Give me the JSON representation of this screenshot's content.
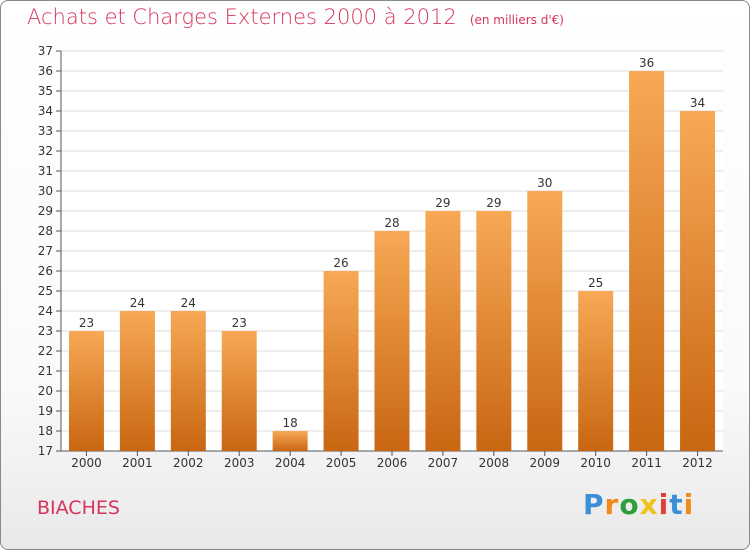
{
  "title": "Achats et Charges Externes 2000 à 2012",
  "subtitle": "(en milliers d'€)",
  "place": "BIACHES",
  "logo": "Proxiti",
  "logo_colors": [
    "#3a8fd6",
    "#f08a1a",
    "#2e9e3a",
    "#f0c21a",
    "#e0403a",
    "#3a8fd6",
    "#f08a1a"
  ],
  "colors": {
    "bar_light": "#f7a955",
    "bar_dark": "#c96612",
    "title": "#d6345c",
    "grid": "#dcdcdc",
    "axis": "#555555"
  },
  "chart_data": {
    "type": "bar",
    "title": "Achats et Charges Externes 2000 à 2012",
    "subtitle": "(en milliers d'€)",
    "categories": [
      "2000",
      "2001",
      "2002",
      "2003",
      "2004",
      "2005",
      "2006",
      "2007",
      "2008",
      "2009",
      "2010",
      "2011",
      "2012"
    ],
    "values": [
      23,
      24,
      24,
      23,
      18,
      26,
      28,
      29,
      29,
      30,
      25,
      36,
      34
    ],
    "ylim": [
      17,
      37
    ],
    "yticks": [
      17,
      18,
      19,
      20,
      21,
      22,
      23,
      24,
      25,
      26,
      27,
      28,
      29,
      30,
      31,
      32,
      33,
      34,
      35,
      36,
      37
    ],
    "grid": true,
    "legend": "none"
  }
}
